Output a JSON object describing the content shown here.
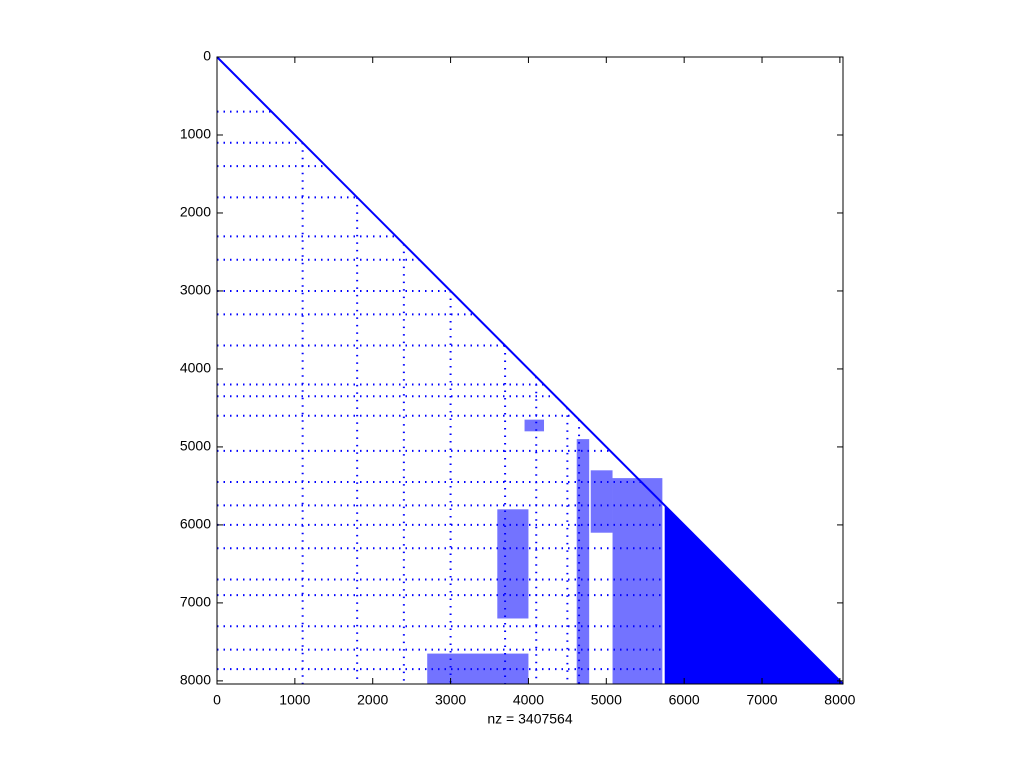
{
  "chart_data": {
    "type": "spy",
    "xlabel": "nz = 3407564",
    "color": "#0000ff",
    "xlim": [
      0,
      8040
    ],
    "ylim": [
      0,
      8040
    ],
    "xticks": [
      0,
      1000,
      2000,
      3000,
      4000,
      5000,
      6000,
      7000,
      8000
    ],
    "yticks": [
      0,
      1000,
      2000,
      3000,
      4000,
      5000,
      6000,
      7000,
      8000
    ],
    "diagonal": {
      "x": [
        0,
        8040
      ],
      "y": [
        0,
        8040
      ]
    },
    "dense_triangle": {
      "x": [
        5750,
        8040,
        5750
      ],
      "y": [
        5750,
        8040,
        8040
      ]
    },
    "blocks": [
      {
        "x": [
          3950,
          4200
        ],
        "y": [
          4650,
          4800
        ]
      },
      {
        "x": [
          4620,
          4780
        ],
        "y": [
          4900,
          8040
        ]
      },
      {
        "x": [
          5080,
          5720
        ],
        "y": [
          5400,
          8040
        ]
      },
      {
        "x": [
          4800,
          5080
        ],
        "y": [
          5300,
          6100
        ]
      },
      {
        "x": [
          2700,
          4000
        ],
        "y": [
          7650,
          8040
        ]
      },
      {
        "x": [
          3600,
          4000
        ],
        "y": [
          5800,
          7200
        ]
      }
    ],
    "rows": [
      {
        "y": 700,
        "x_end": 700
      },
      {
        "y": 1100,
        "x_end": 1100
      },
      {
        "y": 1400,
        "x_end": 1400
      },
      {
        "y": 1800,
        "x_end": 1800
      },
      {
        "y": 2300,
        "x_end": 2300
      },
      {
        "y": 2600,
        "x_end": 2600
      },
      {
        "y": 3000,
        "x_end": 3000
      },
      {
        "y": 3300,
        "x_end": 3300
      },
      {
        "y": 3700,
        "x_end": 3700
      },
      {
        "y": 4200,
        "x_end": 4200
      },
      {
        "y": 4350,
        "x_end": 4350
      },
      {
        "y": 4600,
        "x_end": 4600
      },
      {
        "y": 5050,
        "x_end": 5050
      },
      {
        "y": 5450,
        "x_end": 5450
      },
      {
        "y": 5750,
        "x_end": 5750
      },
      {
        "y": 6000,
        "x_end": 5750
      },
      {
        "y": 6300,
        "x_end": 5750
      },
      {
        "y": 6700,
        "x_end": 5750
      },
      {
        "y": 6900,
        "x_end": 5750
      },
      {
        "y": 7300,
        "x_end": 5750
      },
      {
        "y": 7600,
        "x_end": 5750
      },
      {
        "y": 7850,
        "x_end": 5750
      }
    ],
    "columns": [
      {
        "x": 1100,
        "y_start": 1100
      },
      {
        "x": 1800,
        "y_start": 1800
      },
      {
        "x": 2400,
        "y_start": 2400
      },
      {
        "x": 3000,
        "y_start": 3000
      },
      {
        "x": 3700,
        "y_start": 3700
      },
      {
        "x": 4100,
        "y_start": 4100
      },
      {
        "x": 4500,
        "y_start": 4500
      },
      {
        "x": 4650,
        "y_start": 4650
      }
    ]
  }
}
